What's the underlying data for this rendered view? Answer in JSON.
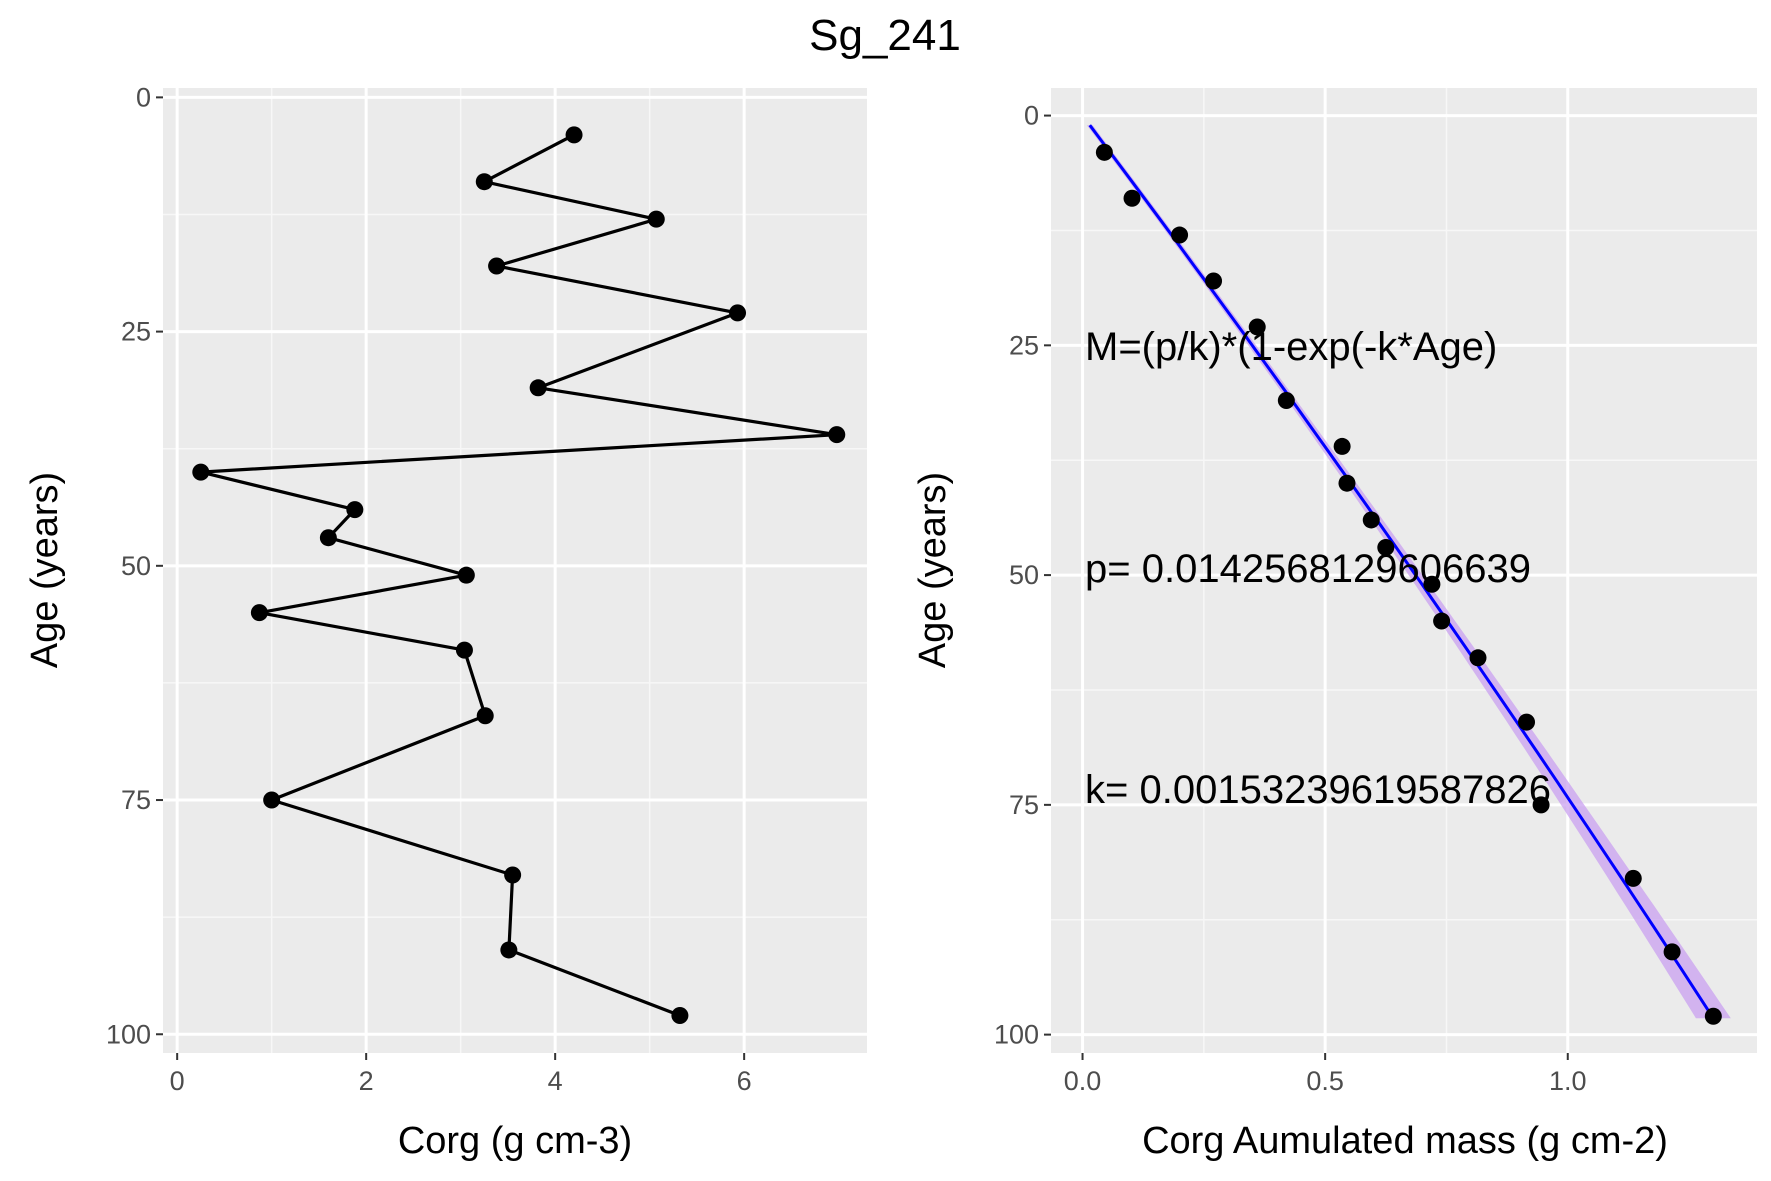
{
  "title": "Sg_241",
  "chart_data": [
    {
      "type": "line",
      "xlabel": "Corg (g cm-3)",
      "ylabel": "Age (years)",
      "xlim": [
        -0.15,
        7.3
      ],
      "ylim": [
        -1,
        102
      ],
      "y_reversed": true,
      "grid": true,
      "xticks": [
        0,
        2,
        4,
        6
      ],
      "xtick_labels": [
        "0",
        "2",
        "4",
        "6"
      ],
      "yticks": [
        0,
        25,
        50,
        75,
        100
      ],
      "ytick_labels": [
        "0",
        "25",
        "50",
        "75",
        "100"
      ],
      "series": [
        {
          "x": [
            4.2,
            3.25,
            5.07,
            3.38,
            5.93,
            3.82,
            6.98,
            0.25,
            1.88,
            1.6,
            3.06,
            0.87,
            3.04,
            3.26,
            1.0,
            3.55,
            3.51,
            5.32
          ],
          "y": [
            4,
            9,
            13,
            18,
            23,
            31,
            36,
            40,
            44,
            47,
            51,
            55,
            59,
            66,
            75,
            83,
            91,
            98
          ]
        }
      ]
    },
    {
      "type": "scatter",
      "xlabel": "Corg Aumulated mass (g cm-2)",
      "ylabel": "Age (years)",
      "xlim": [
        -0.065,
        1.39
      ],
      "ylim": [
        -3,
        102
      ],
      "y_reversed": true,
      "grid": true,
      "xticks": [
        0.0,
        0.5,
        1.0
      ],
      "xtick_labels": [
        "0.0",
        "0.5",
        "1.0"
      ],
      "yticks": [
        0,
        25,
        50,
        75,
        100
      ],
      "ytick_labels": [
        "0",
        "25",
        "50",
        "75",
        "100"
      ],
      "series": [
        {
          "x": [
            0.045,
            0.102,
            0.2,
            0.27,
            0.36,
            0.42,
            0.535,
            0.545,
            0.595,
            0.625,
            0.72,
            0.74,
            0.815,
            0.915,
            0.945,
            1.135,
            1.215,
            1.3
          ],
          "y": [
            4,
            9,
            13,
            18,
            23,
            31,
            36,
            40,
            44,
            47,
            51,
            55,
            59,
            66,
            75,
            83,
            91,
            98
          ]
        }
      ],
      "fit": {
        "label": "M=(p/k)*(1-exp(-k*Age)",
        "p": 0.0142568129606639,
        "k": 0.00153239619587826,
        "line_color": "#0000ff",
        "band_color": "#c9a0f0",
        "x_start": 0.015,
        "x_end": 1.3
      },
      "annotations": [
        "M=(p/k)*(1-exp(-k*Age)",
        "p= 0.0142568129606639",
        "k= 0.00153239619587826"
      ]
    }
  ]
}
